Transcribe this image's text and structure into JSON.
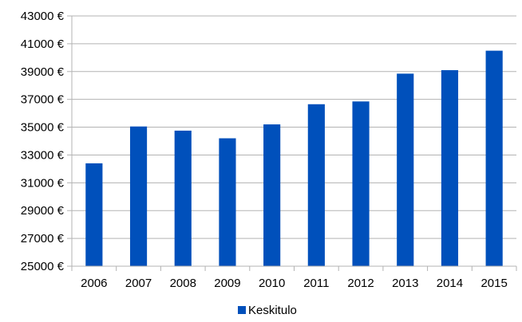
{
  "chart_data": {
    "type": "bar",
    "categories": [
      "2006",
      "2007",
      "2008",
      "2009",
      "2010",
      "2011",
      "2012",
      "2013",
      "2014",
      "2015"
    ],
    "series": [
      {
        "name": "Keskitulo",
        "values": [
          32400,
          35050,
          34750,
          34200,
          35200,
          36650,
          36850,
          38850,
          39100,
          40500
        ],
        "color": "#0050BB"
      }
    ],
    "title": "",
    "xlabel": "",
    "ylabel": "",
    "ylim": [
      25000,
      43000
    ],
    "y_ticks": [
      25000,
      27000,
      29000,
      31000,
      33000,
      35000,
      37000,
      39000,
      41000,
      43000
    ],
    "y_tick_labels": [
      "25000 €",
      "27000 €",
      "29000 €",
      "31000 €",
      "33000 €",
      "35000 €",
      "37000 €",
      "39000 €",
      "41000 €",
      "43000 €"
    ],
    "grid": true,
    "legend_position": "bottom"
  }
}
